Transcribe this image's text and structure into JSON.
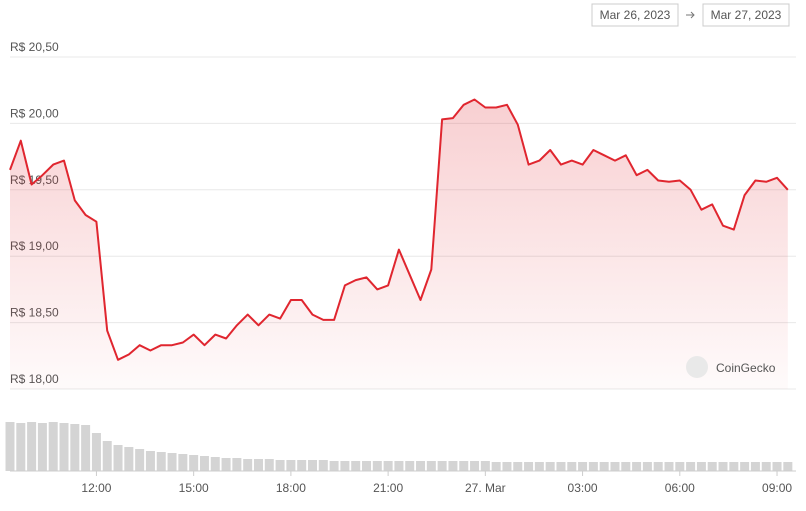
{
  "chart_data": {
    "type": "line",
    "range": {
      "from": "Mar 26, 2023",
      "to": "Mar 27, 2023"
    },
    "watermark": "CoinGecko",
    "x": [
      "2023-03-26 09:20",
      "2023-03-26 09:40",
      "2023-03-26 10:00",
      "2023-03-26 10:20",
      "2023-03-26 10:40",
      "2023-03-26 11:00",
      "2023-03-26 11:20",
      "2023-03-26 11:40",
      "2023-03-26 12:00",
      "2023-03-26 12:20",
      "2023-03-26 12:40",
      "2023-03-26 13:00",
      "2023-03-26 13:20",
      "2023-03-26 13:40",
      "2023-03-26 14:00",
      "2023-03-26 14:20",
      "2023-03-26 14:40",
      "2023-03-26 15:00",
      "2023-03-26 15:20",
      "2023-03-26 15:40",
      "2023-03-26 16:00",
      "2023-03-26 16:20",
      "2023-03-26 16:40",
      "2023-03-26 17:00",
      "2023-03-26 17:20",
      "2023-03-26 17:40",
      "2023-03-26 18:00",
      "2023-03-26 18:20",
      "2023-03-26 18:40",
      "2023-03-26 19:00",
      "2023-03-26 19:20",
      "2023-03-26 19:40",
      "2023-03-26 20:00",
      "2023-03-26 20:20",
      "2023-03-26 20:40",
      "2023-03-26 21:00",
      "2023-03-26 21:20",
      "2023-03-26 21:40",
      "2023-03-26 22:00",
      "2023-03-26 22:20",
      "2023-03-26 22:40",
      "2023-03-26 23:00",
      "2023-03-26 23:20",
      "2023-03-26 23:40",
      "2023-03-27 00:00",
      "2023-03-27 00:20",
      "2023-03-27 00:40",
      "2023-03-27 01:00",
      "2023-03-27 01:20",
      "2023-03-27 01:40",
      "2023-03-27 02:00",
      "2023-03-27 02:20",
      "2023-03-27 02:40",
      "2023-03-27 03:00",
      "2023-03-27 03:20",
      "2023-03-27 03:40",
      "2023-03-27 04:00",
      "2023-03-27 04:20",
      "2023-03-27 04:40",
      "2023-03-27 05:00",
      "2023-03-27 05:20",
      "2023-03-27 05:40",
      "2023-03-27 06:00",
      "2023-03-27 06:20",
      "2023-03-27 06:40",
      "2023-03-27 07:00",
      "2023-03-27 07:20",
      "2023-03-27 07:40",
      "2023-03-27 08:00",
      "2023-03-27 08:20",
      "2023-03-27 08:40",
      "2023-03-27 09:00",
      "2023-03-27 09:20"
    ],
    "series": [
      {
        "color": "#e0262f",
        "values": [
          19.65,
          19.87,
          19.54,
          19.61,
          19.69,
          19.72,
          19.42,
          19.31,
          19.26,
          18.44,
          18.22,
          18.26,
          18.33,
          18.29,
          18.33,
          18.33,
          18.35,
          18.41,
          18.33,
          18.41,
          18.38,
          18.48,
          18.56,
          18.48,
          18.56,
          18.53,
          18.67,
          18.67,
          18.56,
          18.52,
          18.52,
          18.78,
          18.82,
          18.84,
          18.75,
          18.78,
          19.05,
          18.86,
          18.67,
          18.9,
          20.03,
          20.04,
          20.14,
          20.18,
          20.12,
          20.12,
          20.14,
          19.99,
          19.69,
          19.72,
          19.8,
          19.69,
          19.72,
          19.69,
          19.8,
          19.76,
          19.72,
          19.76,
          19.61,
          19.65,
          19.57,
          19.56,
          19.57,
          19.5,
          19.35,
          19.39,
          19.23,
          19.2,
          19.46,
          19.57,
          19.56,
          19.59,
          19.5
        ]
      }
    ],
    "volume": {
      "color": "#d4d4d4",
      "ylim": [
        0,
        50
      ],
      "values": [
        49,
        48,
        49,
        48,
        49,
        48,
        47,
        46,
        38,
        30,
        26,
        24,
        22,
        20,
        19,
        18,
        17,
        16,
        15,
        14,
        13,
        13,
        12,
        12,
        12,
        11,
        11,
        11,
        11,
        11,
        10,
        10,
        10,
        10,
        10,
        10,
        10,
        10,
        10,
        10,
        10,
        10,
        10,
        10,
        10,
        9,
        9,
        9,
        9,
        9,
        9,
        9,
        9,
        9,
        9,
        9,
        9,
        9,
        9,
        9,
        9,
        9,
        9,
        9,
        9,
        9,
        9,
        9,
        9,
        9,
        9,
        9,
        9
      ]
    },
    "xlim": [
      "2023-03-26 09:20",
      "2023-03-27 09:24"
    ],
    "xticks": [
      {
        "value": "2023-03-26 12:00",
        "label": "12:00"
      },
      {
        "value": "2023-03-26 15:00",
        "label": "15:00"
      },
      {
        "value": "2023-03-26 18:00",
        "label": "18:00"
      },
      {
        "value": "2023-03-26 21:00",
        "label": "21:00"
      },
      {
        "value": "2023-03-27 00:00",
        "label": "27. Mar"
      },
      {
        "value": "2023-03-27 03:00",
        "label": "03:00"
      },
      {
        "value": "2023-03-27 06:00",
        "label": "06:00"
      },
      {
        "value": "2023-03-27 09:00",
        "label": "09:00"
      }
    ],
    "ylim": [
      18,
      20.5
    ],
    "yticks": [
      {
        "value": 18,
        "label": "R$ 18,00"
      },
      {
        "value": 18.5,
        "label": "R$ 18,50"
      },
      {
        "value": 19,
        "label": "R$ 19,00"
      },
      {
        "value": 19.5,
        "label": "R$ 19,50"
      },
      {
        "value": 20,
        "label": "R$ 20,00"
      },
      {
        "value": 20.5,
        "label": "R$ 20,50"
      }
    ],
    "grid": true
  }
}
